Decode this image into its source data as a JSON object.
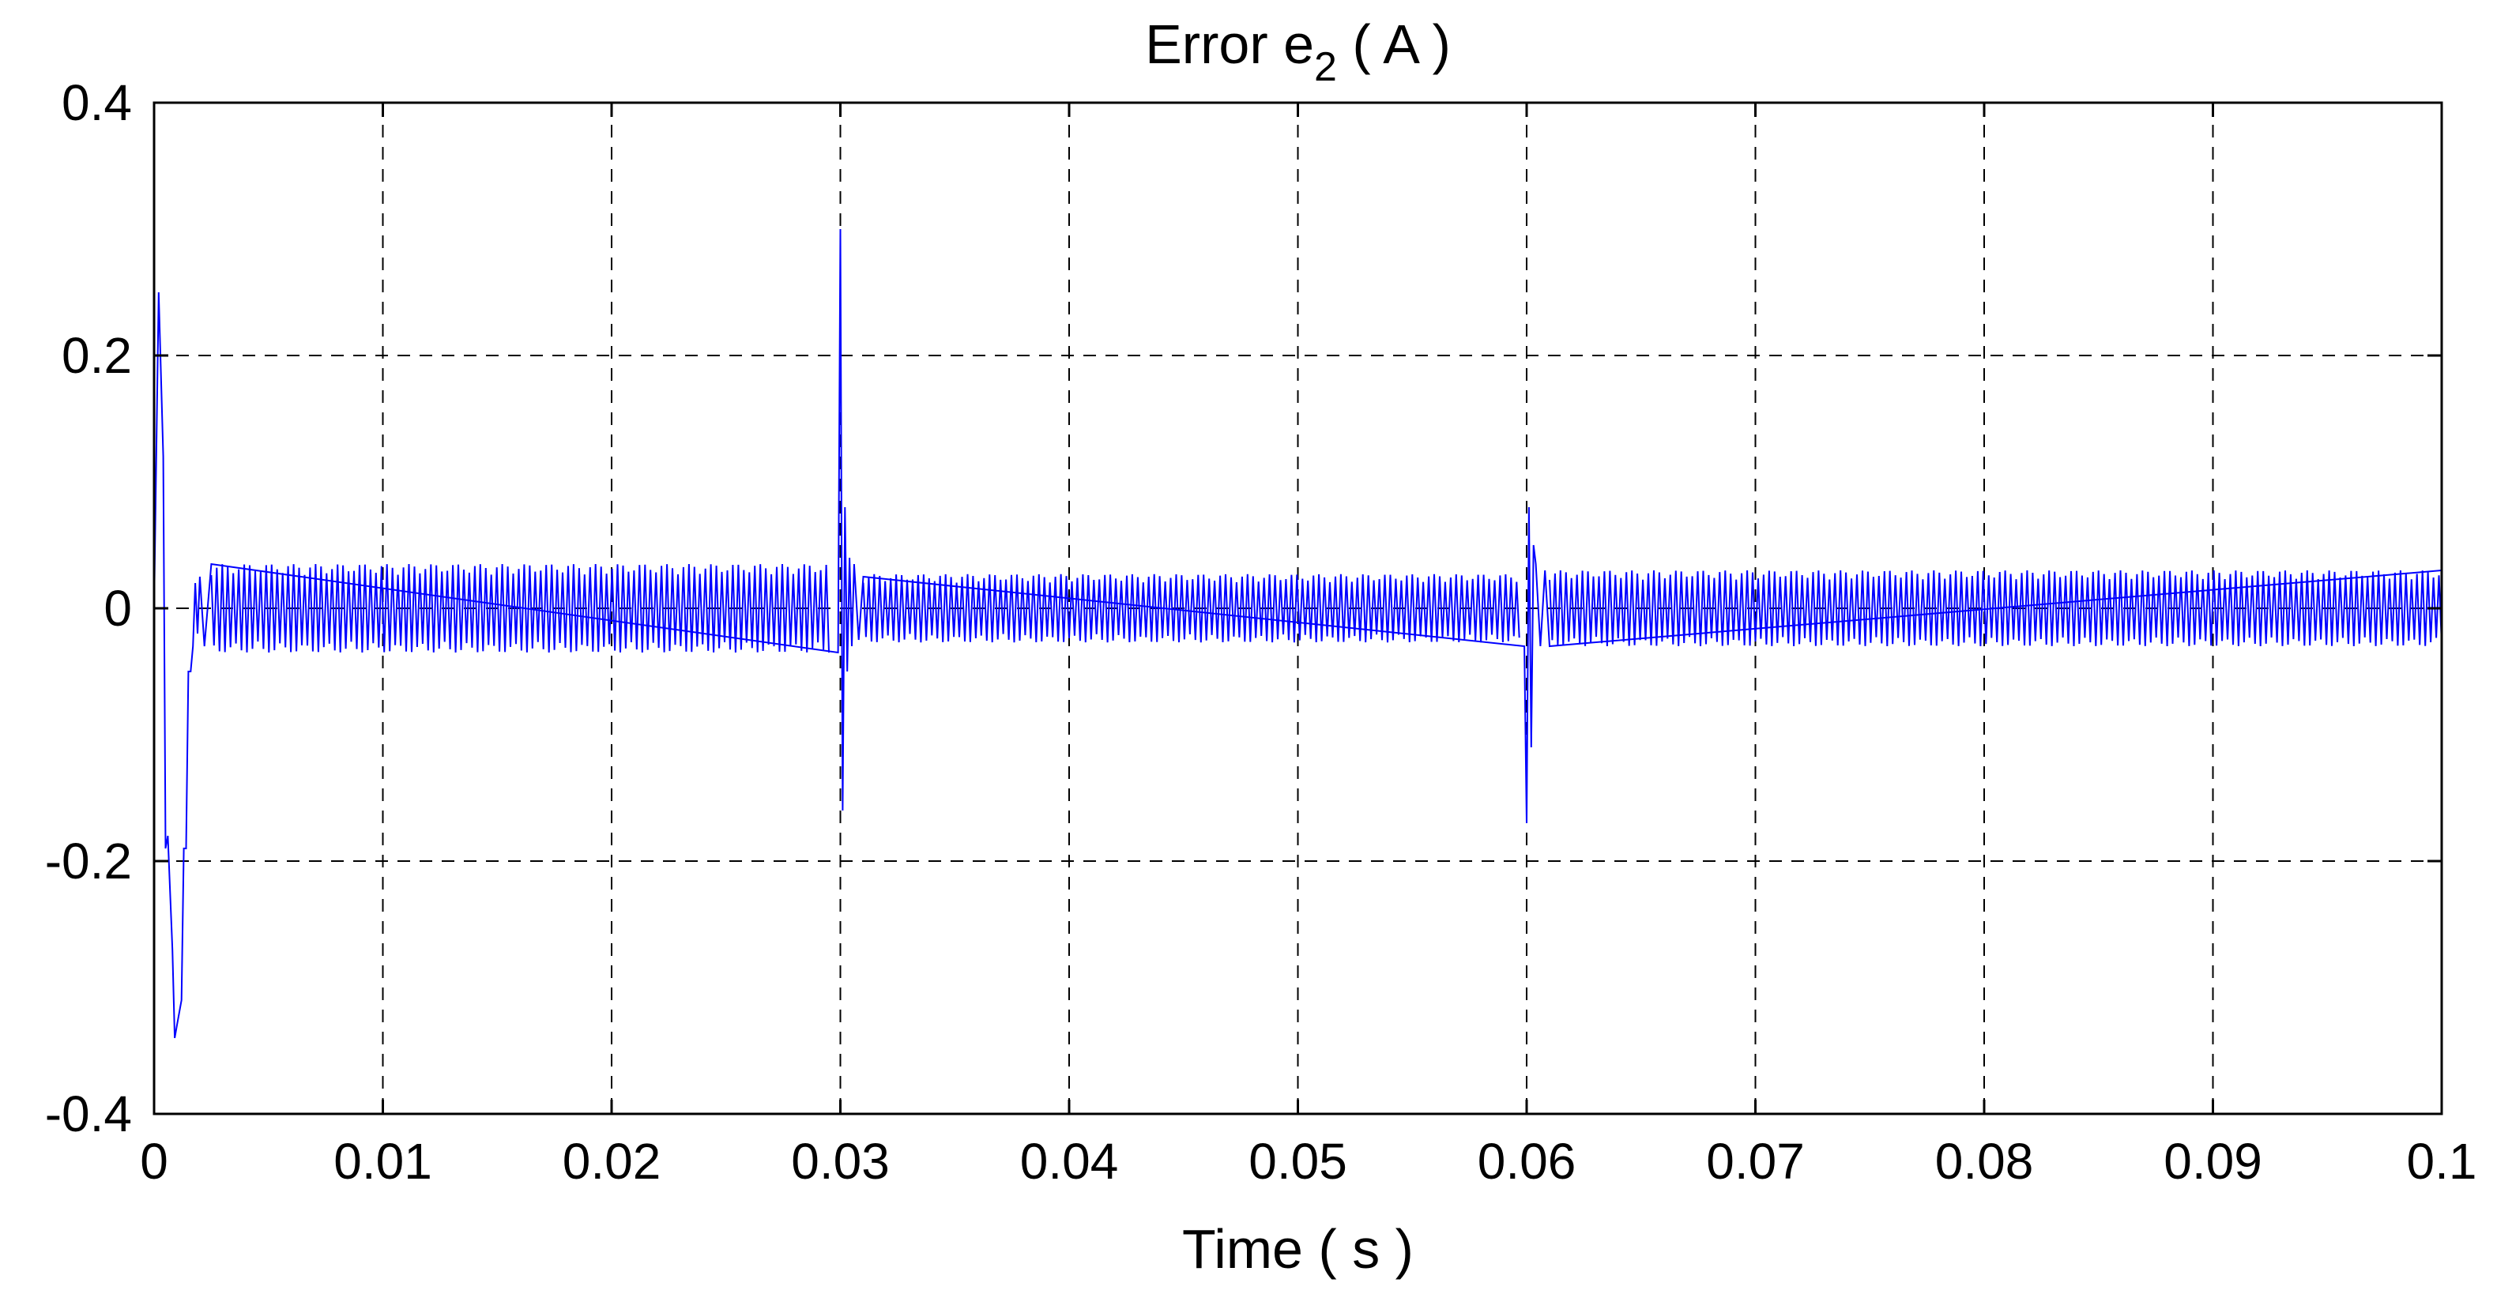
{
  "chart_data": {
    "type": "line",
    "title": "Error e",
    "title_subscript": "2",
    "title_unit": " ( A )",
    "xlabel": "Time ( s )",
    "ylabel": "",
    "xlim": [
      0,
      0.1
    ],
    "ylim": [
      -0.4,
      0.4
    ],
    "x_ticks": [
      0,
      0.01,
      0.02,
      0.03,
      0.04,
      0.05,
      0.06,
      0.07,
      0.08,
      0.09,
      0.1
    ],
    "x_tick_labels": [
      "0",
      "0.01",
      "0.02",
      "0.03",
      "0.04",
      "0.05",
      "0.06",
      "0.07",
      "0.08",
      "0.09",
      "0.1"
    ],
    "y_ticks": [
      -0.4,
      -0.2,
      0,
      0.2,
      0.4
    ],
    "y_tick_labels": [
      "-0.4",
      "-0.2",
      "0",
      "0.2",
      "0.4"
    ],
    "grid": true,
    "legend": "none",
    "series": [
      {
        "color": "#0000ff",
        "x": [
          0,
          0.0002,
          0.0004,
          0.0005,
          0.0006,
          0.0008,
          0.0009,
          0.001,
          0.0012,
          0.0013,
          0.0014,
          0.0015,
          0.0016,
          0.0017,
          0.0018,
          0.0019,
          0.002,
          0.0022,
          0.0025,
          0.0299,
          0.03,
          0.0301,
          0.0302,
          0.0303,
          0.0304,
          0.0305,
          0.0306,
          0.0308,
          0.031,
          0.0599,
          0.06,
          0.0601,
          0.0602,
          0.0603,
          0.0604,
          0.0606,
          0.0608,
          0.061,
          0.1
        ],
        "y": [
          0,
          0.25,
          0.12,
          -0.19,
          -0.18,
          -0.27,
          -0.34,
          -0.33,
          -0.31,
          -0.19,
          -0.19,
          -0.05,
          -0.05,
          -0.03,
          0.02,
          -0.02,
          0.025,
          -0.03,
          0.035,
          -0.035,
          0.3,
          -0.16,
          0.08,
          -0.05,
          0.04,
          -0.03,
          0.035,
          -0.025,
          0.025,
          -0.03,
          -0.17,
          0.08,
          -0.11,
          0.05,
          0.035,
          -0.03,
          0.03,
          -0.03,
          0.03
        ],
        "steady_amplitude_before_0_03": 0.035,
        "steady_amplitude_0_03_to_0_06": 0.027,
        "steady_amplitude_after_0_06": 0.03
      }
    ]
  }
}
